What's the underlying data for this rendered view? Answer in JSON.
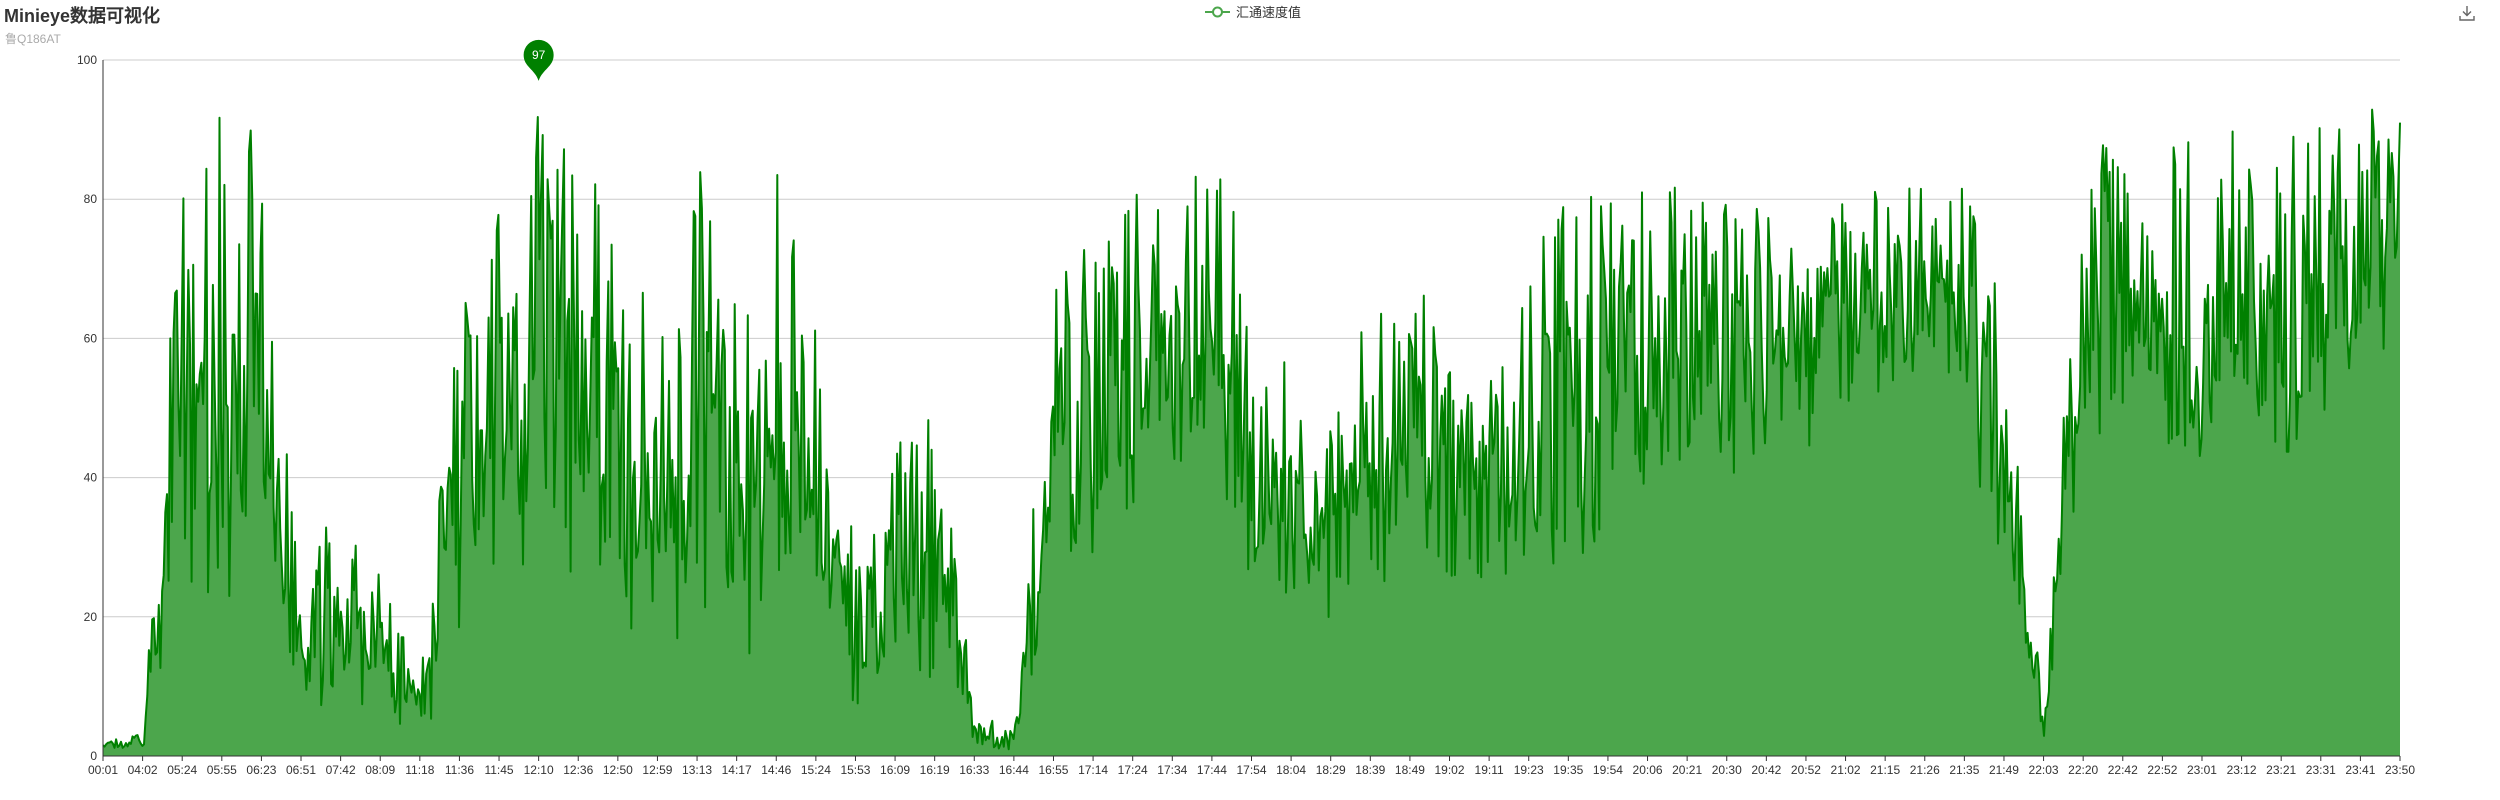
{
  "header": {
    "title": "Minieye数据可视化",
    "subtitle": "鲁Q186AT"
  },
  "legend": {
    "label": "汇通速度值"
  },
  "colors": {
    "series": "#008000",
    "area": "#4ca64c",
    "grid": "#cccccc",
    "axis": "#333333"
  },
  "icons": {
    "toolbox": "download-icon",
    "marker": "pin-marker"
  },
  "chart_data": {
    "type": "area",
    "title": "Minieye数据可视化",
    "subtitle": "鲁Q186AT",
    "xlabel": "",
    "ylabel": "",
    "ylim": [
      0,
      100
    ],
    "yticks": [
      0,
      20,
      40,
      60,
      80,
      100
    ],
    "grid": true,
    "legend_position": "top-center",
    "x_tick_labels": [
      "00:01",
      "04:02",
      "05:24",
      "05:55",
      "06:23",
      "06:51",
      "07:42",
      "08:09",
      "11:18",
      "11:36",
      "11:45",
      "12:10",
      "12:36",
      "12:50",
      "12:59",
      "13:13",
      "14:17",
      "14:46",
      "15:24",
      "15:53",
      "16:09",
      "16:19",
      "16:33",
      "16:44",
      "16:55",
      "17:14",
      "17:24",
      "17:34",
      "17:44",
      "17:54",
      "18:04",
      "18:29",
      "18:39",
      "18:49",
      "19:02",
      "19:11",
      "19:23",
      "19:35",
      "19:54",
      "20:06",
      "20:21",
      "20:30",
      "20:42",
      "20:52",
      "21:02",
      "21:15",
      "21:26",
      "21:35",
      "21:49",
      "22:03",
      "22:20",
      "22:42",
      "22:52",
      "23:01",
      "23:12",
      "23:21",
      "23:31",
      "23:41",
      "23:50"
    ],
    "max_marker": {
      "label": "97",
      "value": 97,
      "x": "12:10"
    },
    "series": [
      {
        "name": "汇通速度值",
        "envelope": [
          {
            "x": "00:01",
            "low": 0,
            "high": 2
          },
          {
            "x": "04:02",
            "low": 0,
            "high": 4
          },
          {
            "x": "05:24",
            "low": 0,
            "high": 88
          },
          {
            "x": "05:55",
            "low": 0,
            "high": 93
          },
          {
            "x": "06:23",
            "low": 0,
            "high": 93
          },
          {
            "x": "06:51",
            "low": 0,
            "high": 25
          },
          {
            "x": "07:42",
            "low": 0,
            "high": 40
          },
          {
            "x": "08:09",
            "low": 0,
            "high": 28
          },
          {
            "x": "11:18",
            "low": 0,
            "high": 10
          },
          {
            "x": "11:36",
            "low": 0,
            "high": 70
          },
          {
            "x": "11:45",
            "low": 0,
            "high": 80
          },
          {
            "x": "12:10",
            "low": 0,
            "high": 97
          },
          {
            "x": "12:36",
            "low": 0,
            "high": 92
          },
          {
            "x": "12:50",
            "low": 0,
            "high": 80
          },
          {
            "x": "12:59",
            "low": 0,
            "high": 62
          },
          {
            "x": "13:13",
            "low": 0,
            "high": 87
          },
          {
            "x": "14:17",
            "low": 0,
            "high": 65
          },
          {
            "x": "14:46",
            "low": 0,
            "high": 88
          },
          {
            "x": "15:24",
            "low": 0,
            "high": 65
          },
          {
            "x": "15:53",
            "low": 0,
            "high": 30
          },
          {
            "x": "16:09",
            "low": 0,
            "high": 45
          },
          {
            "x": "16:19",
            "low": 0,
            "high": 58
          },
          {
            "x": "16:33",
            "low": 0,
            "high": 6
          },
          {
            "x": "16:44",
            "low": 0,
            "high": 4
          },
          {
            "x": "16:55",
            "low": 0,
            "high": 78
          },
          {
            "x": "17:14",
            "low": 10,
            "high": 72
          },
          {
            "x": "17:24",
            "low": 20,
            "high": 85
          },
          {
            "x": "17:34",
            "low": 30,
            "high": 82
          },
          {
            "x": "17:44",
            "low": 25,
            "high": 87
          },
          {
            "x": "17:54",
            "low": 5,
            "high": 75
          },
          {
            "x": "18:04",
            "low": 5,
            "high": 55
          },
          {
            "x": "18:29",
            "low": 10,
            "high": 50
          },
          {
            "x": "18:39",
            "low": 8,
            "high": 65
          },
          {
            "x": "18:49",
            "low": 15,
            "high": 75
          },
          {
            "x": "19:02",
            "low": 10,
            "high": 60
          },
          {
            "x": "19:11",
            "low": 5,
            "high": 58
          },
          {
            "x": "19:23",
            "low": 5,
            "high": 75
          },
          {
            "x": "19:35",
            "low": 10,
            "high": 82
          },
          {
            "x": "19:54",
            "low": 20,
            "high": 80
          },
          {
            "x": "20:06",
            "low": 25,
            "high": 83
          },
          {
            "x": "20:21",
            "low": 20,
            "high": 82
          },
          {
            "x": "20:30",
            "low": 25,
            "high": 80
          },
          {
            "x": "20:42",
            "low": 30,
            "high": 83
          },
          {
            "x": "20:52",
            "low": 30,
            "high": 80
          },
          {
            "x": "21:02",
            "low": 35,
            "high": 82
          },
          {
            "x": "21:15",
            "low": 40,
            "high": 82
          },
          {
            "x": "21:26",
            "low": 45,
            "high": 83
          },
          {
            "x": "21:35",
            "low": 40,
            "high": 82
          },
          {
            "x": "21:49",
            "low": 10,
            "high": 70
          },
          {
            "x": "22:03",
            "low": 0,
            "high": 5
          },
          {
            "x": "22:20",
            "low": 20,
            "high": 92
          },
          {
            "x": "22:42",
            "low": 40,
            "high": 88
          },
          {
            "x": "22:52",
            "low": 30,
            "high": 88
          },
          {
            "x": "23:01",
            "low": 20,
            "high": 92
          },
          {
            "x": "23:12",
            "low": 30,
            "high": 92
          },
          {
            "x": "23:21",
            "low": 25,
            "high": 90
          },
          {
            "x": "23:31",
            "low": 30,
            "high": 92
          },
          {
            "x": "23:41",
            "low": 40,
            "high": 93
          },
          {
            "x": "23:50",
            "low": 55,
            "high": 93
          }
        ]
      }
    ]
  }
}
